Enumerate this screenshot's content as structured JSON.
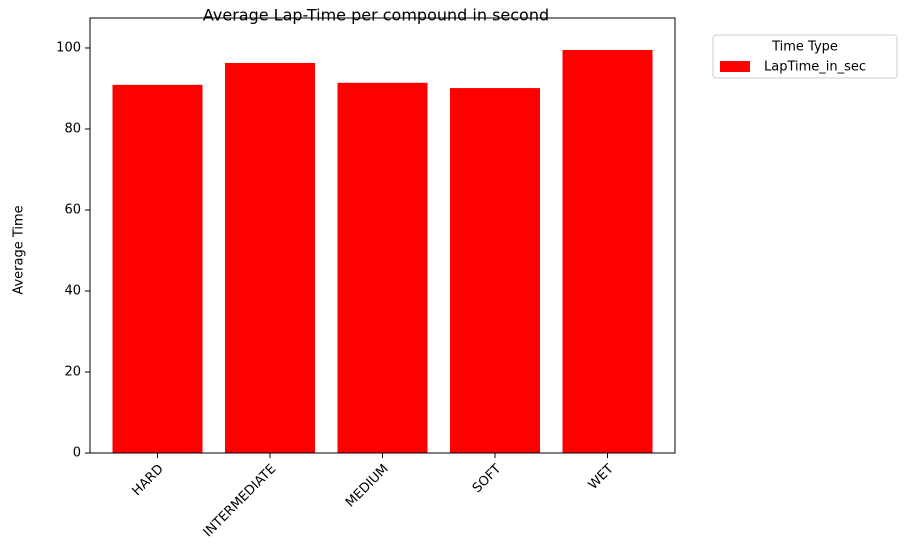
{
  "chart_data": {
    "type": "bar",
    "title": "Average Lap-Time per compound in second",
    "ylabel": "Average Time",
    "categories": [
      "HARD",
      "INTERMEDIATE",
      "MEDIUM",
      "SOFT",
      "WET"
    ],
    "series": [
      {
        "name": "LapTime_in_sec",
        "color": "#ff0000",
        "values": [
          90.9,
          96.3,
          91.4,
          90.1,
          99.5
        ]
      }
    ],
    "legend_title": "Time Type",
    "legend": "upper right outside",
    "ylim": [
      0,
      107.4
    ],
    "yticks": [
      0,
      20,
      40,
      60,
      80,
      100
    ],
    "grid": false
  }
}
